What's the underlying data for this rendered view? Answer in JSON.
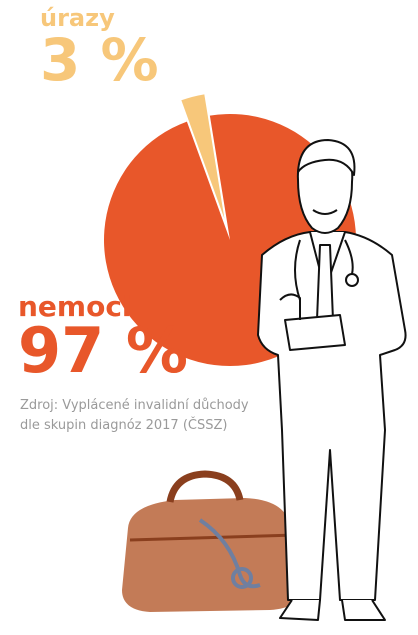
{
  "chart_data": {
    "type": "pie",
    "categories": [
      "úrazy",
      "nemoci"
    ],
    "values": [
      3,
      97
    ],
    "value_labels": [
      "3 %",
      "97 %"
    ],
    "colors": [
      "#f7c77a",
      "#e8572a"
    ],
    "source": "Zdroj: Vyplácené invalidní důchody dle skupin diagnóz 2017 (ČSSZ)"
  }
}
